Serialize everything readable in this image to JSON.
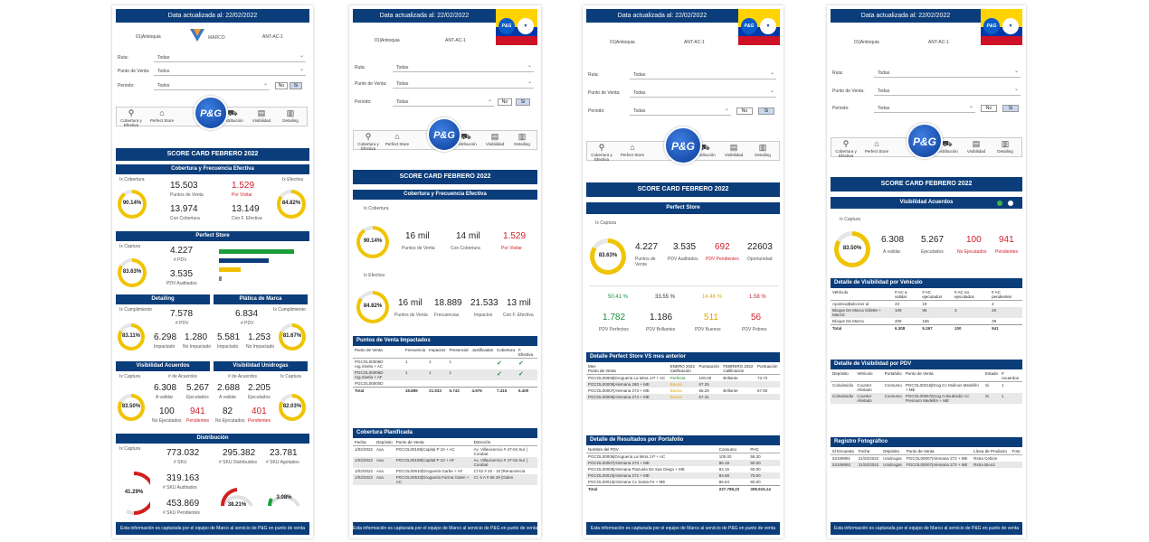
{
  "common": {
    "updated": "Data actualizada al: 22/02/2022",
    "region": "01|Antioquia",
    "code": "ANT-AC-1",
    "brand": "MARCO",
    "ruta_label": "Ruta:",
    "pdv_label": "Punto de Venta:",
    "periodo_label": "Periodo:",
    "todas": "Todas",
    "todos": "Todos",
    "no": "No",
    "si": "Si",
    "pg": "P&G",
    "nav": [
      "Cobertura y Efectiva",
      "Perfect Store",
      "Distribución",
      "Visibilidad",
      "Detailing"
    ],
    "score_title": "SCORE CARD FEBRERO 2022",
    "footer": "Esta información es capturada por el equipo de Marco al servicio de P&G en punto de venta"
  },
  "p1": {
    "cob_title": "Cobertura y Frecuencia Efectiva",
    "cob_label": "Ix Cobertura",
    "cob_pct": "90.14%",
    "efe_label": "Ix Efectiva",
    "efe_pct": "84.82%",
    "pv": "15.503",
    "pv_l": "Puntos de Venta",
    "visit": "1.529",
    "visit_l": "Por Visitar",
    "conc": "13.974",
    "conc_l": "Con Cobertura",
    "conf": "13.149",
    "conf_l": "Con F. Efectiva",
    "ps_title": "Perfect Store",
    "cap_label": "Ix Captura",
    "cap_pct": "83.63%",
    "pdv": "4.227",
    "pdv_l": "# PDV",
    "aud": "3.535",
    "aud_l": "PDV Auditados",
    "bars": [
      {
        "name": "",
        "value": 1782,
        "color": "#1a9f3a"
      },
      {
        "name": "",
        "value": 1186,
        "color": "#0b3d7a"
      },
      {
        "name": "",
        "value": 511,
        "color": "#f0c000"
      },
      {
        "name": "",
        "value": 56,
        "color": "#888888"
      }
    ],
    "bar_max": 1900,
    "det_title": "Detailing",
    "det_label": "Ix Cumplimiento",
    "det_pct": "83.11%",
    "det_pdv": "7.578",
    "det_pdv_l": "# PDV",
    "det_imp": "6.298",
    "det_imp_l": "Impactado",
    "det_noimp": "1.280",
    "det_noimp_l": "No Impactado",
    "pla_title": "Plática de Marca",
    "pla_label": "Ix Cumplimiento",
    "pla_pct": "81.67%",
    "pla_pdv": "6.834",
    "pla_pdv_l": "# PDV",
    "pla_imp": "5.581",
    "pla_imp_l": "Impactado",
    "pla_noimp": "1.253",
    "pla_noimp_l": "No Impactado",
    "va_title": "Visibilidad Acuerdos",
    "va_label": "Ix Captura",
    "va_pct": "83.50%",
    "va_n": "# de Acuerdos",
    "va_val": "6.308",
    "va_val_l": "A validar",
    "va_eje": "5.267",
    "va_eje_l": "Ejecutados",
    "va_noe": "100",
    "va_noe_l": "No Ejecutados",
    "va_pen": "941",
    "va_pen_l": "Pendientes",
    "vu_title": "Visibilidad Unidrogas",
    "vu_label": "Ix Captura",
    "vu_pct": "82.03%",
    "vu_n": "# de Acuerdos",
    "vu_val": "2.688",
    "vu_val_l": "A validar",
    "vu_eje": "2.205",
    "vu_eje_l": "Ejecutados",
    "vu_noe": "82",
    "vu_noe_l": "No Ejecutados",
    "vu_pen": "401",
    "vu_pen_l": "Pendientes",
    "dist_title": "Distribución",
    "dist_label": "Ix Captura",
    "sku": "773.032",
    "sku_l": "# SKU",
    "skud": "295.382",
    "skud_l": "# SKU Distribuidos",
    "skua": "23.781",
    "skua_l": "# SKU Agotados",
    "skuaud": "319.163",
    "skuaud_l": "# SKU Auditados",
    "skupen": "453.869",
    "skupen_l": "# SKU Pendientes",
    "g1": "41.29%",
    "g2": "38.21%",
    "g3": "3.08%"
  },
  "p2": {
    "cob_title": "Cobertura y Frecuencia Efectiva",
    "cob_label": "Ix Cobertura",
    "cob_pct": "90.14%",
    "pv": "16 mil",
    "pv_l": "Puntos de Venta",
    "conc": "14 mil",
    "conc_l": "Con Cobertura",
    "visit": "1.529",
    "visit_l": "Por Visitar",
    "efe_label": "Ix Efectiva",
    "efe_pct": "84.82%",
    "pv2": "16 mil",
    "pv2_l": "Puntos de Venta",
    "frec": "18.889",
    "frec_l": "Frecuencias",
    "imp": "21.533",
    "imp_l": "Impactos",
    "conf": "13 mil",
    "conf_l": "Con F. Efectiva",
    "pvi_title": "Puntos de Venta Impactados",
    "pvi_cols": [
      "Punto de Venta",
      "Frecuencia",
      "Impactos",
      "Presencial",
      "Justificadas",
      "Cobertura",
      "F. Efectiva"
    ],
    "pvi_rows": [
      [
        "PGCOL00006D rog.Sivela + AC",
        "1",
        "1",
        "1",
        "",
        "✓",
        "✓"
      ],
      [
        "PGCOL00006D rog.Sivela + AF",
        "1",
        "1",
        "1",
        "",
        "✓",
        "✓"
      ],
      [
        "PGCOL00000D",
        "",
        "",
        "",
        "",
        "",
        ""
      ]
    ],
    "pvi_total": [
      "Total",
      "18.889",
      "21.533",
      "6.743",
      "4.976",
      "7.415",
      "6.400"
    ],
    "cp_title": "Cobertura Planificada",
    "cp_cols": [
      "Fecha",
      "Depósito",
      "Punto de Venta",
      "Dirección"
    ],
    "cp_rows": [
      [
        "1/02/2022",
        "Axa",
        "PGCOL00198|Capital P 10 + AC",
        "Av. Villavicencio # 47-04 Sur | Corabal"
      ],
      [
        "1/02/2022",
        "Axa",
        "PGCOL00198|Capital P 10 + AF",
        "Av. Villavicencio # 47-04 Sur | Corabal"
      ],
      [
        "1/02/2022",
        "Axa",
        "PGCOL00610|Drogueria Garbe + AF",
        "Cl 52 # 40 - 10 |Renaciencia"
      ],
      [
        "1/02/2022",
        "Axa",
        "PGCOL00533|Drogueria Farma Galen + AC",
        "Cl. 5 A # 56 29 |Galen"
      ]
    ]
  },
  "p3": {
    "ps_title": "Perfect Store",
    "cap_label": "Ix Captura",
    "cap_pct": "83.63%",
    "pdv": "4.227",
    "pdv_l": "Puntos de Venta",
    "aud": "3.535",
    "aud_l": "PDV Auditados",
    "pen": "692",
    "pen_l": "PDV Pendientes",
    "opo": "22603",
    "opo_l": "Oportunidad",
    "pct1": "50.41 %",
    "pct2": "33.55 %",
    "pct3": "14.46 %",
    "pct4": "1.58 %",
    "perf": "1.782",
    "perf_l": "PDV Perfectos",
    "bril": "1.186",
    "bril_l": "PDV Brillantes",
    "bue": "511",
    "bue_l": "PDV Buenos",
    "pob": "56",
    "pob_l": "PDV Pobres",
    "dps_title": "Detalle Perfect Store VS mes anterior",
    "dps_cols": [
      "Mes\nPunto de Venta",
      "ENERO 2022\nCalificación",
      "Puntuación",
      "FEBRERO 2022\nCalificación",
      "Puntuación"
    ],
    "dps_rows": [
      [
        "PGCOL00006|Drogueria La Mina J.P + AC",
        "Perfecta",
        "100.00",
        "Brillante",
        "73.73"
      ],
      [
        "PGCOL00008|Alemana 280 + ME",
        "Buena",
        "67.25",
        "",
        ""
      ],
      [
        "PGCOL00007|Alemana 273 + ME",
        "Buena",
        "66.29",
        "Brillante",
        "87.90"
      ],
      [
        "PGCOL00008|Alemana 274 + ME",
        "Buena",
        "67.31",
        "",
        ""
      ]
    ],
    "drp_title": "Detalle de Resultados por Portafolio",
    "drp_cols": [
      "Nombre del PDV",
      "Consumo",
      "PHC"
    ],
    "drp_rows": [
      [
        "PGCOL00006|Drogueria La Mina J.P + AC",
        "100.00",
        "58.30"
      ],
      [
        "PGCOL00007|Alemana 273 + ME",
        "86.19",
        "90.00"
      ],
      [
        "PGCOL00009|Alemana Plazuela De San Diego + ME",
        "84.16",
        "90.00"
      ],
      [
        "PGCOL00010|Alemana 272 + ME",
        "84.88",
        "70.00"
      ],
      [
        "PGCOL00013|Alemana Cc Santa Fe + ME",
        "86.64",
        "80.00"
      ]
    ],
    "drp_total": [
      "Total",
      "227.789,22",
      "308.916,14"
    ]
  },
  "p4": {
    "va_title": "Visibilidad Acuerdos",
    "cap_label": "Ix Captura",
    "cap_pct": "83.50%",
    "val": "6.308",
    "val_l": "A validar",
    "eje": "5.267",
    "eje_l": "Ejecutados",
    "noe": "100",
    "noe_l": "No Ejecutados",
    "pen": "941",
    "pen_l": "Pendientes",
    "dv_title": "Detalle de Visibilidad por Vehículo",
    "dv_cols": [
      "Vehículo",
      "# AC a validar",
      "# AC ejecutados",
      "# AC no ejecutados",
      "# AC pendientes"
    ],
    "dv_rows": [
      [
        "Apoteca|Balconer al",
        "23",
        "19",
        "",
        "4"
      ],
      [
        "Bloque De Marca Gillette + Mach3",
        "109",
        "86",
        "3",
        "20"
      ],
      [
        "Bloque De Marca",
        "205",
        "166",
        "",
        "39"
      ]
    ],
    "dv_total": [
      "Total",
      "6.308",
      "5.267",
      "100",
      "941"
    ],
    "dp_title": "Detalle de Visibilidad por PDV",
    "dp_cols": [
      "Depósito",
      "Vehículo",
      "Portafolio",
      "Punto de Venta",
      "Estado",
      "# Acuerdos"
    ],
    "dp_rows": [
      [
        "Colsubsidio",
        "Counter Afeitado",
        "Consumo",
        "PGCOL00016|Drog Cc Molinos Medellín + ME",
        "Si",
        "1"
      ],
      [
        "Colsubsidio",
        "Counter Afeitado",
        "Consumo",
        "PGCOL00067|Drog Colsubsidio Cc Premium Medellín + ME",
        "Si",
        "1"
      ]
    ],
    "rf_title": "Registro Fotográfico",
    "rf_cols": [
      "Id Encuesta",
      "Fecha",
      "Depósito",
      "Punto de Venta",
      "Línea de Producto",
      "Foto"
    ],
    "rf_rows": [
      [
        "52108991",
        "21/02/2022",
        "Unidrogas",
        "PGCOL00007|Alemana 273 + ME",
        "Rstra Cebion",
        ""
      ],
      [
        "52108992",
        "21/02/2022",
        "Unidrogas",
        "PGCOL00007|Alemana 273 + ME",
        "Rstra Bion3",
        ""
      ]
    ]
  },
  "colors": {
    "navy": "#0b3d7a",
    "red": "#d0202a",
    "green": "#1a8f3a",
    "yellow": "#e0a800",
    "ring": "#f0c400"
  }
}
